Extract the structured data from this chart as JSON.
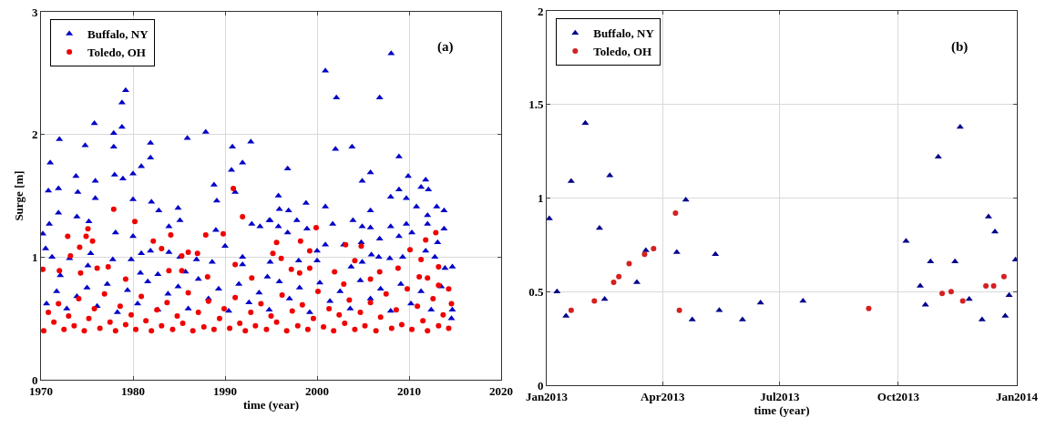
{
  "chart_data": [
    {
      "type": "scatter",
      "xlabel": "time (year)",
      "ylabel": "Surge [m]",
      "annotations": [
        "(a)"
      ],
      "legend": "top left",
      "grid": true,
      "xlim": [
        1970,
        2020
      ],
      "xticks": [
        1970,
        1980,
        1990,
        2000,
        2010,
        2020
      ],
      "ylim": [
        0,
        3
      ],
      "yticks": [
        0,
        1,
        2,
        3
      ],
      "series": [
        {
          "name": "Buffalo, NY",
          "color": "#0000c8",
          "marker": "triangle",
          "x": [
            1979.2,
            1978.8,
            1978.8,
            1975.8,
            1977.9,
            1977.9,
            1974.8,
            1972.0,
            1981.9,
            1981.9,
            1985.9,
            1987.9,
            1990.8,
            1992.8,
            1971.0,
            1970.8,
            1971.9,
            1973.8,
            1974.0,
            1975.9,
            1975.9,
            1978.0,
            1978.9,
            1980.0,
            1980.9,
            1980.0,
            1982.0,
            1982.8,
            1984.9,
            1988.8,
            1989.1,
            1990.7,
            1991.1,
            1991.9,
            1971.9,
            1970.9,
            1970.2,
            1973.9,
            1975.2,
            1978.1,
            1980.0,
            1983.9,
            1985.1,
            1989.0,
            1992.9,
            1993.8,
            1994.9,
            1970.5,
            1971.2,
            1973.1,
            1975.4,
            1979.8,
            1980.9,
            1981.9,
            1983.9,
            1985.1,
            1986.9,
            1990.0,
            1991.9,
            1994.9,
            1972.1,
            1975.1,
            1977.8,
            1980.8,
            1982.7,
            1985.7,
            1988.6,
            1991.9,
            1994.6,
            2008.05,
            2000.9,
            2002.1,
            2006.8,
            2002.0,
            2003.8,
            2008.9,
            1996.8,
            2005.8,
            2009.9,
            2011.8,
            2004.9,
            2011.3,
            2012.1,
            1995.8,
            2008.9,
            2008.0,
            2009.7,
            1998.8,
            1995.9,
            2000.9,
            2010.8,
            2013.0,
            2013.8,
            2012.0,
            1996.9,
            1994.8,
            2003.9,
            2005.8,
            2001.7,
            1997.8,
            1998.9,
            2004.9,
            2005.8,
            2009.7,
            2012.0,
            2013.8,
            2008.0,
            1995.8,
            1996.8,
            2000.9,
            2000.0,
            2002.9,
            2004.8,
            2006.8,
            2008.9,
            2010.3,
            2013.1,
            2005.9,
            2006.7,
            2007.9,
            2009.3,
            2011.8,
            2012.8,
            2014.7,
            2013.9,
            2004.9,
            2000.0,
            1998.0,
            2003.7,
            1970.6,
            1971.7,
            1972.8,
            1973.9,
            1975.0,
            1976.1,
            1977.2,
            1978.3,
            1979.4,
            1980.5,
            1981.6,
            1982.7,
            1983.8,
            1984.9,
            1986.0,
            1987.1,
            1988.2,
            1989.3,
            1990.4,
            1991.5,
            1992.6,
            1993.7,
            1994.8,
            1995.9,
            1997.0,
            1998.1,
            1999.2,
            2000.3,
            2001.4,
            2002.5,
            2003.6,
            2004.7,
            2005.8,
            2006.9,
            2008.0,
            2009.1,
            2010.2,
            2011.3,
            2012.4,
            2013.5,
            2014.6,
            2014.7
          ],
          "values": [
            2.36,
            2.26,
            2.06,
            2.09,
            2.01,
            1.9,
            1.91,
            1.96,
            1.93,
            1.81,
            1.97,
            2.02,
            1.9,
            1.94,
            1.77,
            1.54,
            1.56,
            1.66,
            1.53,
            1.62,
            1.48,
            1.67,
            1.64,
            1.68,
            1.74,
            1.47,
            1.45,
            1.38,
            1.4,
            1.59,
            1.46,
            1.71,
            1.53,
            1.77,
            1.36,
            1.27,
            1.19,
            1.33,
            1.29,
            1.2,
            1.17,
            1.25,
            1.3,
            1.22,
            1.27,
            1.25,
            1.3,
            1.07,
            1.0,
            0.99,
            1.03,
            0.98,
            1.03,
            1.05,
            1.04,
            1.0,
            0.98,
            1.09,
            1.0,
            0.96,
            0.85,
            0.93,
            0.98,
            0.87,
            0.86,
            0.88,
            0.96,
            0.94,
            0.84,
            2.66,
            2.52,
            2.3,
            2.3,
            1.88,
            1.9,
            1.82,
            1.72,
            1.69,
            1.66,
            1.63,
            1.62,
            1.57,
            1.55,
            1.5,
            1.55,
            1.49,
            1.48,
            1.44,
            1.39,
            1.41,
            1.41,
            1.41,
            1.38,
            1.34,
            1.38,
            1.3,
            1.3,
            1.38,
            1.27,
            1.3,
            1.23,
            1.25,
            1.24,
            1.27,
            1.27,
            1.23,
            1.25,
            1.25,
            1.2,
            1.1,
            1.05,
            1.1,
            1.12,
            1.15,
            1.17,
            1.2,
            1.12,
            1.02,
            1.0,
            0.99,
            1.0,
            1.05,
            1.0,
            0.92,
            0.91,
            0.96,
            0.97,
            0.97,
            0.92,
            0.62,
            0.72,
            0.58,
            0.68,
            0.75,
            0.6,
            0.78,
            0.55,
            0.73,
            0.62,
            0.8,
            0.57,
            0.7,
            0.76,
            0.58,
            0.82,
            0.66,
            0.74,
            0.56,
            0.78,
            0.63,
            0.71,
            0.57,
            0.8,
            0.66,
            0.75,
            0.55,
            0.79,
            0.64,
            0.72,
            0.58,
            0.81,
            0.66,
            0.74,
            0.56,
            0.78,
            0.62,
            0.72,
            0.57,
            0.76,
            0.5,
            0.57
          ]
        },
        {
          "name": "Toledo, OH",
          "color": "#f00000",
          "marker": "circle",
          "x": [
            1977.9,
            1980.2,
            1990.9,
            1991.9,
            1975.1,
            1972.9,
            1974.9,
            1975.6,
            1982.2,
            1983.1,
            1984.1,
            1987.9,
            1989.8,
            1973.2,
            1974.2,
            1986.0,
            1987.0,
            1985.3,
            1995.2,
            1970.2,
            1972.0,
            1974.3,
            1976.1,
            1977.3,
            1979.2,
            1983.9,
            1985.3,
            1988.1,
            1991.1,
            1992.9,
            1999.9,
            1995.6,
            1998.2,
            2003.1,
            2004.8,
            2010.1,
            2011.8,
            2012.9,
            1996.1,
            1999.2,
            1999.2,
            2004.1,
            2011.3,
            2013.2,
            2008.8,
            2006.8,
            2005.8,
            2011.1,
            2012.0,
            2013.2,
            2014.3,
            1997.2,
            1998.1,
            2001.9,
            2002.9,
            1970.3,
            1970.8,
            1971.4,
            1971.9,
            1972.5,
            1973.0,
            1973.6,
            1974.1,
            1974.7,
            1975.2,
            1975.8,
            1976.4,
            1976.9,
            1977.5,
            1978.1,
            1978.6,
            1979.2,
            1979.8,
            1980.3,
            1980.9,
            1981.4,
            1982.0,
            1982.6,
            1983.1,
            1983.7,
            1984.3,
            1984.8,
            1985.4,
            1986.0,
            1986.5,
            1987.1,
            1987.7,
            1988.2,
            1988.8,
            1989.4,
            1989.9,
            1990.5,
            1991.1,
            1991.6,
            1992.2,
            1992.8,
            1993.3,
            1993.9,
            1994.5,
            1995.0,
            1995.6,
            1996.2,
            1996.7,
            1997.3,
            1997.9,
            1998.4,
            1999.0,
            1999.6,
            2000.1,
            2000.7,
            2001.3,
            2001.8,
            2002.4,
            2003.0,
            2003.5,
            2004.1,
            2004.7,
            2005.2,
            2005.8,
            2006.4,
            2006.9,
            2007.5,
            2008.1,
            2008.6,
            2009.2,
            2009.8,
            2010.3,
            2010.9,
            2011.5,
            2012.0,
            2012.6,
            2013.2,
            2013.7,
            2014.3,
            2014.6
          ],
          "values": [
            1.39,
            1.29,
            1.56,
            1.33,
            1.23,
            1.17,
            1.17,
            1.13,
            1.13,
            1.07,
            1.18,
            1.18,
            1.19,
            1.01,
            1.08,
            1.04,
            1.03,
            1.01,
            1.03,
            0.9,
            0.89,
            0.87,
            0.91,
            0.92,
            0.82,
            0.89,
            0.89,
            0.84,
            0.94,
            0.83,
            1.24,
            1.12,
            1.13,
            1.1,
            1.09,
            1.06,
            1.14,
            1.2,
            0.99,
            1.05,
            0.91,
            0.97,
            0.98,
            0.92,
            0.91,
            0.88,
            0.82,
            0.84,
            0.83,
            0.77,
            0.74,
            0.9,
            0.87,
            0.88,
            0.78,
            0.4,
            0.55,
            0.47,
            0.62,
            0.41,
            0.52,
            0.44,
            0.66,
            0.4,
            0.5,
            0.58,
            0.42,
            0.7,
            0.47,
            0.4,
            0.6,
            0.45,
            0.53,
            0.41,
            0.68,
            0.48,
            0.4,
            0.57,
            0.44,
            0.63,
            0.41,
            0.52,
            0.46,
            0.71,
            0.4,
            0.55,
            0.43,
            0.64,
            0.41,
            0.5,
            0.58,
            0.42,
            0.67,
            0.46,
            0.4,
            0.55,
            0.44,
            0.62,
            0.41,
            0.52,
            0.47,
            0.69,
            0.4,
            0.56,
            0.44,
            0.61,
            0.41,
            0.5,
            0.72,
            0.43,
            0.58,
            0.4,
            0.53,
            0.46,
            0.65,
            0.41,
            0.55,
            0.44,
            0.63,
            0.4,
            0.51,
            0.7,
            0.42,
            0.57,
            0.45,
            0.74,
            0.41,
            0.6,
            0.48,
            0.4,
            0.66,
            0.44,
            0.53,
            0.42,
            0.62
          ]
        }
      ]
    },
    {
      "type": "scatter",
      "xlabel": "time (year)",
      "annotations": [
        "(b)"
      ],
      "legend": "top left",
      "grid": true,
      "xlim": [
        "2013-01-01",
        "2014-01-01"
      ],
      "xticks": [
        {
          "value": "2013-01-01",
          "label": "Jan2013"
        },
        {
          "value": "2013-04-01",
          "label": "Apr2013"
        },
        {
          "value": "2013-07-01",
          "label": "Jul2013"
        },
        {
          "value": "2013-10-01",
          "label": "Oct2013"
        },
        {
          "value": "2014-01-01",
          "label": "Jan2014"
        }
      ],
      "ylim": [
        0,
        2
      ],
      "yticks": [
        0,
        0.5,
        1,
        1.5,
        2
      ],
      "series": [
        {
          "name": "Buffalo, NY",
          "color": "#00008b",
          "marker": "triangle",
          "x": [
            "2013-01-03",
            "2013-01-09",
            "2013-01-16",
            "2013-01-20",
            "2013-01-31",
            "2013-02-11",
            "2013-02-15",
            "2013-02-19",
            "2013-03-12",
            "2013-03-19",
            "2013-04-12",
            "2013-04-19",
            "2013-04-24",
            "2013-05-12",
            "2013-05-15",
            "2013-06-02",
            "2013-06-16",
            "2013-07-19",
            "2013-10-07",
            "2013-10-18",
            "2013-10-22",
            "2013-10-26",
            "2013-11-01",
            "2013-11-14",
            "2013-11-18",
            "2013-11-25",
            "2013-12-05",
            "2013-12-10",
            "2013-12-15",
            "2013-12-23",
            "2013-12-26",
            "2013-12-31"
          ],
          "values": [
            0.89,
            0.5,
            0.37,
            1.09,
            1.4,
            0.84,
            0.46,
            1.12,
            0.55,
            0.72,
            0.71,
            0.99,
            0.35,
            0.7,
            0.4,
            0.35,
            0.44,
            0.45,
            0.77,
            0.53,
            0.43,
            0.66,
            1.22,
            0.66,
            1.38,
            0.46,
            0.35,
            0.9,
            0.82,
            0.37,
            0.48,
            0.67
          ]
        },
        {
          "name": "Toledo, OH",
          "color": "#d42020",
          "marker": "circle",
          "x": [
            "2013-01-20",
            "2013-02-07",
            "2013-02-22",
            "2013-02-26",
            "2013-03-06",
            "2013-03-18",
            "2013-03-25",
            "2013-04-11",
            "2013-04-14",
            "2013-09-08",
            "2013-11-04",
            "2013-11-11",
            "2013-11-20",
            "2013-12-08",
            "2013-12-14",
            "2013-12-22"
          ],
          "values": [
            0.4,
            0.45,
            0.55,
            0.58,
            0.65,
            0.7,
            0.73,
            0.92,
            0.4,
            0.41,
            0.49,
            0.5,
            0.45,
            0.53,
            0.53,
            0.58
          ]
        }
      ]
    }
  ]
}
